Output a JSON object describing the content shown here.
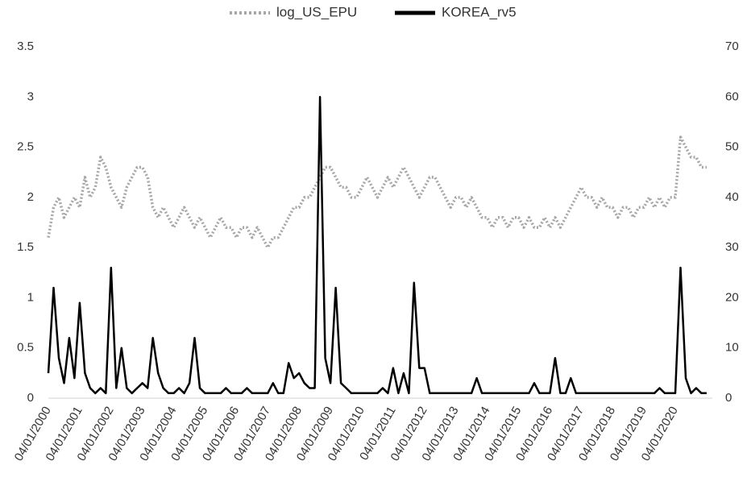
{
  "chart_data": {
    "type": "line",
    "categories": [
      "04/01/2000",
      null,
      null,
      null,
      null,
      null,
      "04/01/2001",
      null,
      null,
      null,
      null,
      null,
      "04/01/2002",
      null,
      null,
      null,
      null,
      null,
      "04/01/2003",
      null,
      null,
      null,
      null,
      null,
      "04/01/2004",
      null,
      null,
      null,
      null,
      null,
      "04/01/2005",
      null,
      null,
      null,
      null,
      null,
      "04/01/2006",
      null,
      null,
      null,
      null,
      null,
      "04/01/2007",
      null,
      null,
      null,
      null,
      null,
      "04/01/2008",
      null,
      null,
      null,
      null,
      null,
      "04/01/2009",
      null,
      null,
      null,
      null,
      null,
      "04/01/2010",
      null,
      null,
      null,
      null,
      null,
      "04/01/2011",
      null,
      null,
      null,
      null,
      null,
      "04/01/2012",
      null,
      null,
      null,
      null,
      null,
      "04/01/2013",
      null,
      null,
      null,
      null,
      null,
      "04/01/2014",
      null,
      null,
      null,
      null,
      null,
      "04/01/2015",
      null,
      null,
      null,
      null,
      null,
      "04/01/2016",
      null,
      null,
      null,
      null,
      null,
      "04/01/2017",
      null,
      null,
      null,
      null,
      null,
      "04/01/2018",
      null,
      null,
      null,
      null,
      null,
      "04/01/2019",
      null,
      null,
      null,
      null,
      null,
      "04/01/2020",
      null,
      null,
      null,
      null,
      null,
      null
    ],
    "series": [
      {
        "name": "log_US_EPU",
        "color": "#a6a6a6",
        "dashed": true,
        "values": [
          1.6,
          1.9,
          2.0,
          1.8,
          1.9,
          2.0,
          1.9,
          2.2,
          2.0,
          2.1,
          2.4,
          2.3,
          2.1,
          2.0,
          1.9,
          2.1,
          2.2,
          2.3,
          2.3,
          2.2,
          1.9,
          1.8,
          1.9,
          1.8,
          1.7,
          1.8,
          1.9,
          1.8,
          1.7,
          1.8,
          1.7,
          1.6,
          1.7,
          1.8,
          1.7,
          1.7,
          1.6,
          1.7,
          1.7,
          1.6,
          1.7,
          1.6,
          1.5,
          1.6,
          1.6,
          1.7,
          1.8,
          1.9,
          1.9,
          2.0,
          2.0,
          2.1,
          2.2,
          2.3,
          2.3,
          2.2,
          2.1,
          2.1,
          2.0,
          2.0,
          2.1,
          2.2,
          2.1,
          2.0,
          2.1,
          2.2,
          2.1,
          2.2,
          2.3,
          2.2,
          2.1,
          2.0,
          2.1,
          2.2,
          2.2,
          2.1,
          2.0,
          1.9,
          2.0,
          2.0,
          1.9,
          2.0,
          1.9,
          1.8,
          1.8,
          1.7,
          1.8,
          1.8,
          1.7,
          1.8,
          1.8,
          1.7,
          1.8,
          1.7,
          1.7,
          1.8,
          1.7,
          1.8,
          1.7,
          1.8,
          1.9,
          2.0,
          2.1,
          2.0,
          2.0,
          1.9,
          2.0,
          1.9,
          1.9,
          1.8,
          1.9,
          1.9,
          1.8,
          1.9,
          1.9,
          2.0,
          1.9,
          2.0,
          1.9,
          2.0,
          2.0,
          2.6,
          2.5,
          2.4,
          2.4,
          2.3,
          2.3
        ]
      },
      {
        "name": "KOREA_rv5",
        "color": "#000000",
        "axis": "y2",
        "values": [
          5,
          22,
          8,
          3,
          12,
          4,
          19,
          5,
          2,
          1,
          2,
          1,
          26,
          2,
          10,
          2,
          1,
          2,
          3,
          2,
          12,
          5,
          2,
          1,
          1,
          2,
          1,
          3,
          12,
          2,
          1,
          1,
          1,
          1,
          2,
          1,
          1,
          1,
          2,
          1,
          1,
          1,
          1,
          3,
          1,
          1,
          7,
          4,
          5,
          3,
          2,
          2,
          60,
          8,
          3,
          22,
          3,
          2,
          1,
          1,
          1,
          1,
          1,
          1,
          2,
          1,
          6,
          1,
          5,
          1,
          23,
          6,
          6,
          1,
          1,
          1,
          1,
          1,
          1,
          1,
          1,
          1,
          4,
          1,
          1,
          1,
          1,
          1,
          1,
          1,
          1,
          1,
          1,
          3,
          1,
          1,
          1,
          8,
          1,
          1,
          4,
          1,
          1,
          1,
          1,
          1,
          1,
          1,
          1,
          1,
          1,
          1,
          1,
          1,
          1,
          1,
          1,
          2,
          1,
          1,
          1,
          26,
          4,
          1,
          2,
          1,
          1
        ]
      }
    ],
    "ylim": [
      0,
      3.5
    ],
    "yticks": [
      0,
      0.5,
      1,
      1.5,
      2,
      2.5,
      3,
      3.5
    ],
    "y2lim": [
      0,
      70
    ],
    "y2ticks": [
      0,
      10,
      20,
      30,
      40,
      50,
      60,
      70
    ],
    "legend": "top"
  }
}
